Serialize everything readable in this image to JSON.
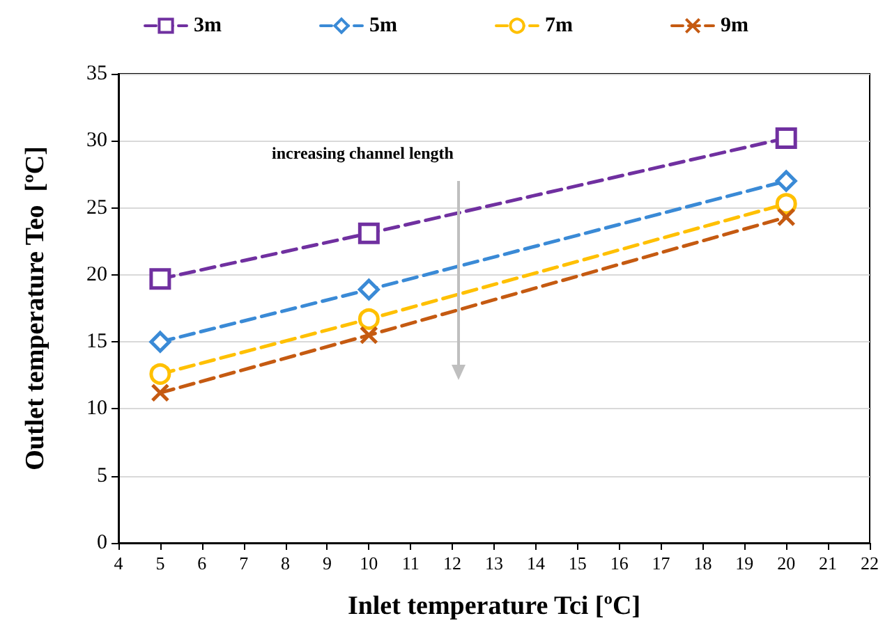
{
  "chart_data": {
    "type": "line",
    "xlabel": "Inlet temperature Tci [ºC]",
    "ylabel": "Outlet temperature Teo  [ºC]",
    "x": [
      5,
      10,
      20
    ],
    "series": [
      {
        "name": "3m",
        "color": "#7030a0",
        "marker": "square",
        "values": [
          19.7,
          23.1,
          30.2
        ]
      },
      {
        "name": "5m",
        "color": "#3a8ad6",
        "marker": "diamond",
        "values": [
          15.0,
          18.9,
          27.0
        ]
      },
      {
        "name": "7m",
        "color": "#ffc000",
        "marker": "circle",
        "values": [
          12.6,
          16.7,
          25.3
        ]
      },
      {
        "name": "9m",
        "color": "#c55a11",
        "marker": "cross",
        "values": [
          11.2,
          15.5,
          24.3
        ]
      }
    ],
    "xlim": [
      4,
      22
    ],
    "xticks": [
      4,
      5,
      6,
      7,
      8,
      9,
      10,
      11,
      12,
      13,
      14,
      15,
      16,
      17,
      18,
      19,
      20,
      21,
      22
    ],
    "ylim": [
      0,
      35
    ],
    "yticks": [
      0,
      5,
      10,
      15,
      20,
      25,
      30,
      35
    ],
    "grid": "y",
    "legend": "top",
    "line_style": "dashed",
    "annotations": [
      "increasing channel length"
    ]
  }
}
